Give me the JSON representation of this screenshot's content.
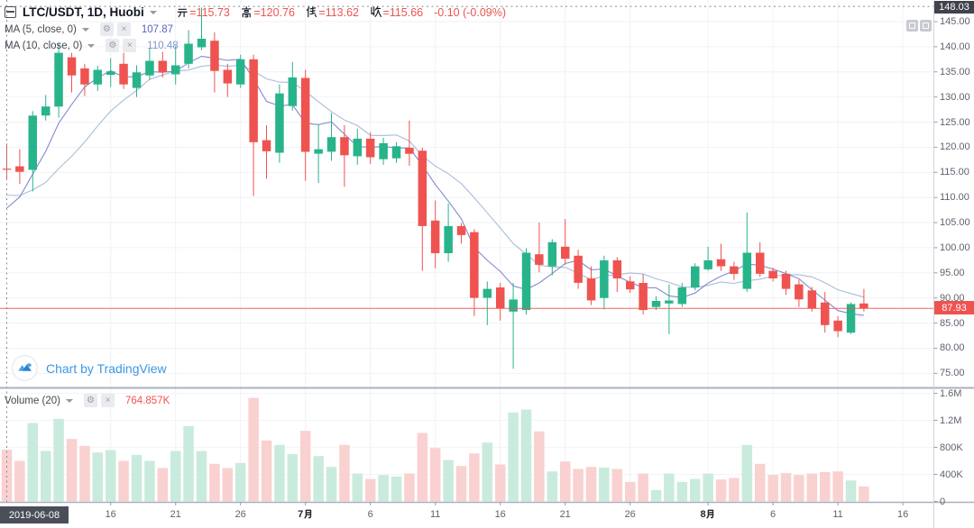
{
  "header": {
    "symbol_title": "LTC/USDT, 1D, Huobi",
    "ohlc": [
      {
        "label": "开",
        "value": "115.73"
      },
      {
        "label": "高",
        "value": "120.76"
      },
      {
        "label": "低",
        "value": "113.62"
      },
      {
        "label": "收",
        "value": "115.66"
      }
    ],
    "change_text": "-0.10 (-0.09%)"
  },
  "indicators": [
    {
      "name": "MA (5, close, 0)",
      "value": "107.87",
      "value_color": "#5961bc"
    },
    {
      "name": "MA (10, close, 0)",
      "value": "110.48",
      "value_color": "#7b96cc"
    }
  ],
  "volume_indicator": {
    "name": "Volume (20)",
    "value": "764.857K",
    "value_color": "#ef5350"
  },
  "watermark_text": "Chart by TradingView",
  "crosshair": {
    "date_label": "2019-06-08",
    "price_label": "148.03"
  },
  "last_price_label": "87.93",
  "price_axis_levels": [
    145,
    140,
    135,
    130,
    125,
    120,
    115,
    110,
    105,
    100,
    95,
    90,
    85,
    80,
    75
  ],
  "volume_axis_labels": [
    {
      "text": "1.6M",
      "v": 1600
    },
    {
      "text": "1.2M",
      "v": 1200
    },
    {
      "text": "800K",
      "v": 800
    },
    {
      "text": "400K",
      "v": 400
    },
    {
      "text": "0",
      "v": 0
    }
  ],
  "time_ticks": [
    {
      "label": "16",
      "i": 8
    },
    {
      "label": "21",
      "i": 13
    },
    {
      "label": "26",
      "i": 18
    },
    {
      "label": "7月",
      "i": 23,
      "bold": true
    },
    {
      "label": "6",
      "i": 28
    },
    {
      "label": "11",
      "i": 33
    },
    {
      "label": "16",
      "i": 38
    },
    {
      "label": "21",
      "i": 43
    },
    {
      "label": "26",
      "i": 48
    },
    {
      "label": "8月",
      "i": 54,
      "bold": true
    },
    {
      "label": "6",
      "i": 59
    },
    {
      "label": "11",
      "i": 64
    },
    {
      "label": "16",
      "i": 69
    }
  ],
  "chart_data": {
    "type": "candlestick_with_volume",
    "symbol": "LTC/USDT",
    "interval": "1D",
    "exchange": "Huobi",
    "start_date": "2019-06-08",
    "up_color": "#28b48a",
    "down_color": "#ef5350",
    "vol_up_color": "#c9ebdd",
    "vol_down_color": "#f9d1d0",
    "ma5_color": "#6f74c9",
    "ma10_color": "#9bb0d3",
    "price_line": 87.93,
    "crosshair_price": 148.03,
    "candles": [
      [
        115.73,
        120.76,
        113.62,
        115.66
      ],
      [
        116.2,
        119.6,
        112.7,
        115.1
      ],
      [
        115.5,
        127.2,
        111.2,
        126.3
      ],
      [
        126.3,
        130.4,
        125.3,
        128.1
      ],
      [
        128.1,
        140.8,
        125.9,
        138.8
      ],
      [
        137.9,
        138.8,
        130.9,
        134.3
      ],
      [
        135.7,
        136.6,
        130.2,
        132.5
      ],
      [
        132.5,
        136.2,
        131.2,
        135.4
      ],
      [
        134.4,
        137.7,
        132.0,
        135.1
      ],
      [
        136.6,
        138.8,
        131.6,
        132.5
      ],
      [
        131.8,
        136.3,
        130.0,
        134.9
      ],
      [
        134.3,
        139.7,
        133.4,
        137.2
      ],
      [
        137.2,
        139.0,
        133.9,
        134.9
      ],
      [
        134.5,
        140.2,
        132.5,
        136.3
      ],
      [
        136.6,
        143.3,
        135.7,
        140.6
      ],
      [
        139.9,
        147.8,
        139.3,
        141.6
      ],
      [
        141.2,
        142.9,
        130.9,
        135.2
      ],
      [
        135.4,
        136.6,
        130.0,
        132.7
      ],
      [
        132.5,
        138.4,
        131.8,
        137.5
      ],
      [
        137.5,
        138.4,
        110.3,
        121.0
      ],
      [
        121.4,
        124.4,
        113.7,
        119.2
      ],
      [
        118.9,
        132.5,
        116.9,
        130.7
      ],
      [
        128.2,
        137.0,
        127.3,
        133.9
      ],
      [
        133.8,
        135.4,
        113.3,
        119.1
      ],
      [
        118.7,
        124.6,
        112.9,
        119.6
      ],
      [
        119.1,
        126.8,
        117.3,
        122.0
      ],
      [
        122.0,
        124.4,
        112.1,
        118.4
      ],
      [
        118.2,
        123.7,
        116.5,
        121.7
      ],
      [
        121.7,
        123.0,
        116.7,
        118.0
      ],
      [
        117.6,
        121.9,
        116.5,
        120.8
      ],
      [
        117.8,
        121.0,
        116.9,
        120.2
      ],
      [
        119.9,
        125.3,
        116.3,
        118.7
      ],
      [
        119.3,
        119.9,
        95.4,
        104.3
      ],
      [
        105.4,
        109.4,
        95.9,
        98.9
      ],
      [
        98.9,
        108.8,
        97.2,
        104.3
      ],
      [
        104.3,
        104.9,
        100.8,
        102.5
      ],
      [
        103.1,
        103.7,
        86.4,
        90.0
      ],
      [
        90.0,
        93.3,
        84.6,
        91.8
      ],
      [
        92.1,
        93.0,
        85.5,
        87.9
      ],
      [
        87.3,
        93.0,
        75.9,
        89.7
      ],
      [
        87.6,
        99.9,
        86.7,
        99.0
      ],
      [
        98.7,
        105.0,
        95.1,
        96.6
      ],
      [
        96.3,
        101.7,
        94.5,
        101.1
      ],
      [
        100.2,
        105.7,
        96.6,
        97.8
      ],
      [
        98.4,
        99.6,
        91.8,
        93.0
      ],
      [
        93.9,
        96.3,
        88.6,
        89.5
      ],
      [
        90.0,
        98.4,
        87.7,
        97.5
      ],
      [
        97.5,
        98.1,
        91.2,
        93.9
      ],
      [
        93.3,
        94.3,
        91.0,
        91.7
      ],
      [
        93.0,
        94.7,
        86.7,
        87.6
      ],
      [
        88.2,
        90.3,
        87.6,
        89.4
      ],
      [
        88.9,
        92.7,
        82.8,
        89.5
      ],
      [
        88.8,
        93.0,
        88.2,
        92.1
      ],
      [
        92.1,
        96.9,
        91.5,
        96.3
      ],
      [
        95.7,
        100.2,
        95.4,
        97.5
      ],
      [
        97.7,
        100.8,
        95.4,
        96.3
      ],
      [
        96.3,
        97.2,
        93.6,
        94.8
      ],
      [
        91.8,
        107.0,
        91.2,
        99.0
      ],
      [
        99.0,
        101.1,
        94.2,
        94.8
      ],
      [
        95.4,
        96.0,
        93.3,
        93.9
      ],
      [
        94.8,
        95.4,
        90.6,
        91.8
      ],
      [
        92.7,
        93.6,
        88.2,
        89.7
      ],
      [
        91.5,
        92.2,
        87.3,
        87.9
      ],
      [
        89.1,
        91.2,
        83.1,
        84.6
      ],
      [
        85.5,
        86.4,
        82.2,
        83.4
      ],
      [
        83.1,
        89.1,
        82.8,
        88.8
      ],
      [
        88.9,
        91.8,
        87.3,
        87.93
      ]
    ],
    "volumes_k": [
      765,
      600,
      1160,
      747,
      1222,
      924,
      823,
      724,
      760,
      600,
      689,
      600,
      493,
      747,
      1116,
      747,
      556,
      493,
      569,
      1533,
      902,
      836,
      702,
      1044,
      671,
      511,
      836,
      413,
      333,
      391,
      369,
      413,
      1013,
      791,
      613,
      524,
      711,
      871,
      547,
      1316,
      1360,
      1036,
      444,
      591,
      480,
      511,
      502,
      480,
      289,
      413,
      169,
      413,
      289,
      333,
      413,
      324,
      347,
      836,
      556,
      391,
      422,
      391,
      413,
      435,
      444,
      311,
      222
    ],
    "ma_pre_closes": [
      116,
      115,
      113.5,
      111,
      109.94,
      104,
      103.5,
      105.5,
      110.7
    ],
    "ylim": [
      72,
      149.3
    ],
    "volume_ylim_k": [
      0,
      1670
    ]
  }
}
